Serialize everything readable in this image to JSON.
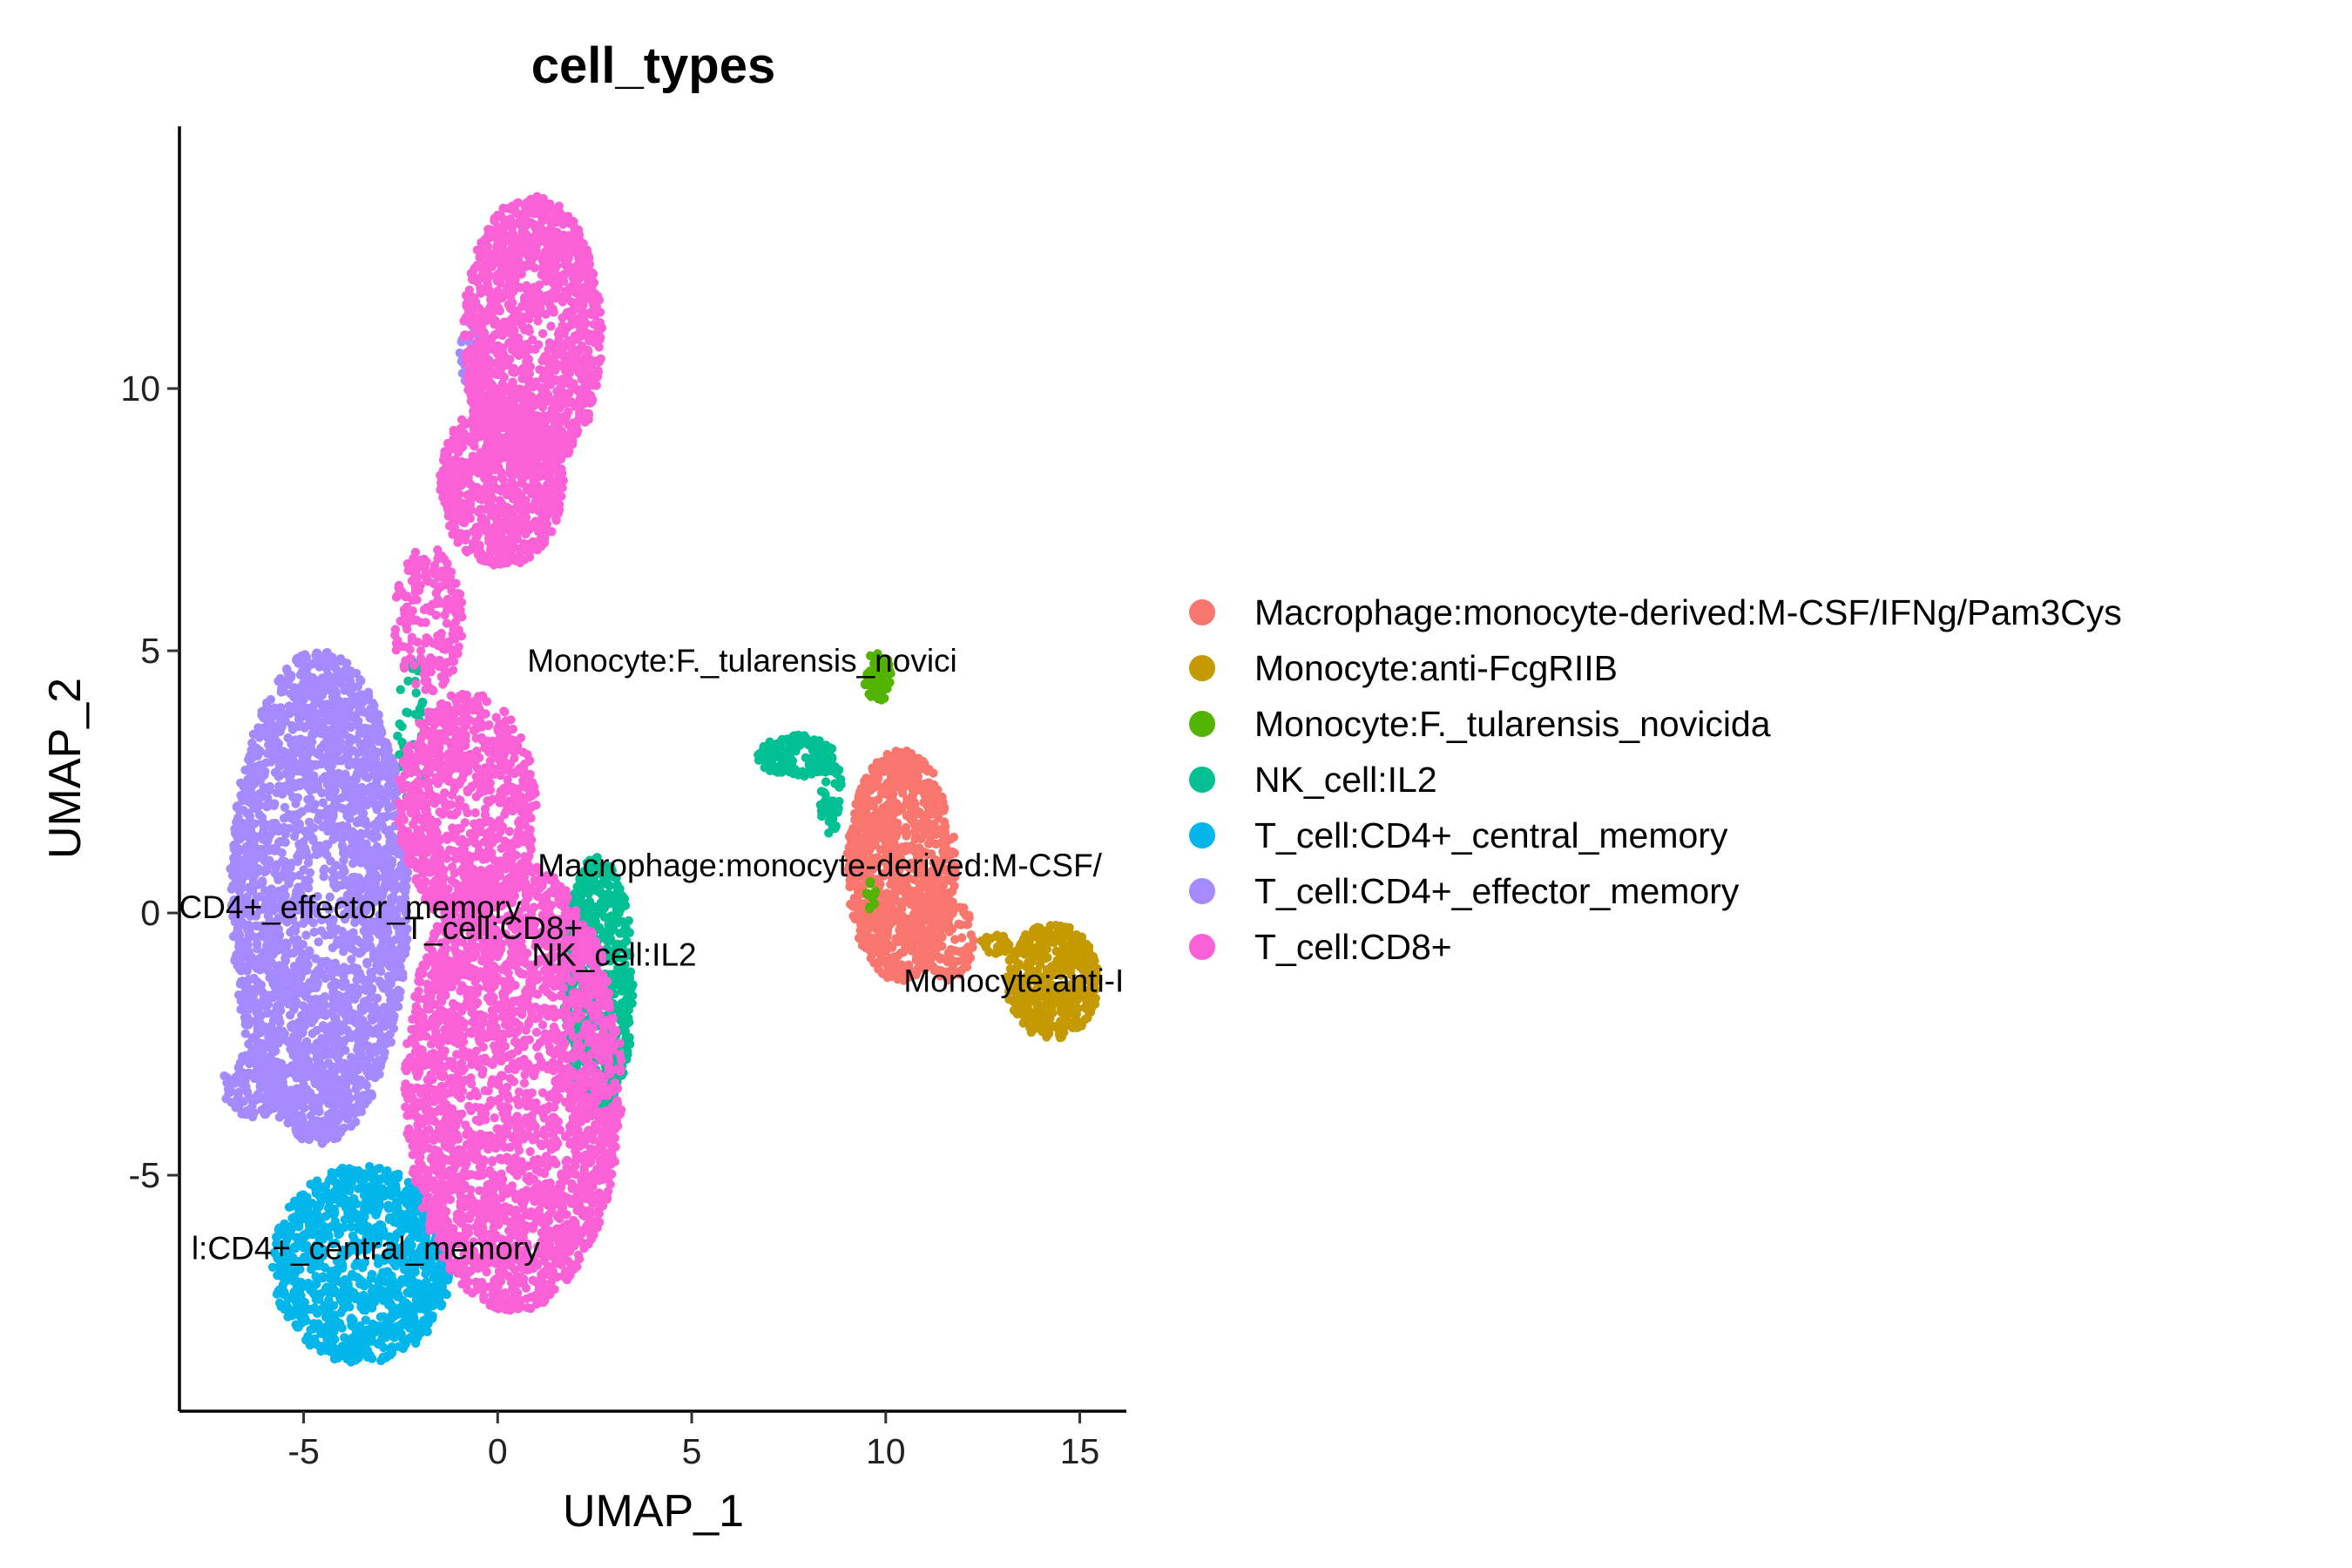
{
  "chart_data": {
    "type": "scatter",
    "title": "cell_types",
    "xlabel": "UMAP_1",
    "ylabel": "UMAP_2",
    "xlim": [
      -8.2,
      16.2
    ],
    "ylim": [
      -9.5,
      15
    ],
    "xticks": [
      -5,
      0,
      5,
      10,
      15
    ],
    "yticks": [
      -5,
      0,
      5,
      10
    ],
    "xtick_labels": [
      "-5",
      "0",
      "5",
      "10",
      "15"
    ],
    "ytick_labels": [
      "-5",
      "0",
      "5",
      "10"
    ],
    "legend_position": "right",
    "grid": false,
    "series": [
      {
        "name": "Macrophage:monocyte-derived:M-CSF/IFNg/Pam3Cys",
        "color": "#F8766D",
        "label_text": "Macrophage:monocyte-derived:M-CSF/",
        "label_at": [
          8.3,
          0.7
        ],
        "regions": [
          {
            "cx": 10.4,
            "cy": 0.9,
            "rx": 1.4,
            "ry": 2.2,
            "n": 900
          },
          {
            "cx": 11.5,
            "cy": -0.5,
            "rx": 0.8,
            "ry": 0.8,
            "n": 120
          }
        ]
      },
      {
        "name": "Monocyte:anti-FcgRIIB",
        "color": "#C49A00",
        "label_text": "Monocyte:anti-I",
        "label_at": [
          13.3,
          -1.5
        ],
        "regions": [
          {
            "cx": 14.3,
            "cy": -1.3,
            "rx": 1.2,
            "ry": 1.1,
            "n": 450
          },
          {
            "cx": 12.8,
            "cy": -0.6,
            "rx": 0.4,
            "ry": 0.2,
            "n": 20
          }
        ]
      },
      {
        "name": "Monocyte:F._tularensis_novicida",
        "color": "#53B400",
        "label_text": "Monocyte:F._tularensis_novici",
        "label_at": [
          6.3,
          4.6
        ],
        "regions": [
          {
            "cx": 9.8,
            "cy": 4.5,
            "rx": 0.35,
            "ry": 0.5,
            "n": 70
          },
          {
            "cx": 9.6,
            "cy": 0.3,
            "rx": 0.15,
            "ry": 0.3,
            "n": 12
          }
        ]
      },
      {
        "name": "NK_cell:IL2",
        "color": "#00C094",
        "label_text": "NK_cell:IL2",
        "label_at": [
          3.0,
          -1.0
        ],
        "regions": [
          {
            "cx": 2.6,
            "cy": -1.4,
            "rx": 0.9,
            "ry": 2.5,
            "n": 650
          },
          {
            "cx": 7.7,
            "cy": 3.0,
            "rx": 1.0,
            "ry": 0.4,
            "n": 140
          },
          {
            "cx": 8.6,
            "cy": 2.2,
            "rx": 0.3,
            "ry": 0.7,
            "n": 50
          },
          {
            "cx": -2.2,
            "cy": 3.5,
            "rx": 0.4,
            "ry": 1.5,
            "n": 40
          }
        ]
      },
      {
        "name": "T_cell:CD4+_central_memory",
        "color": "#00B6EB",
        "label_text": "l:CD4+_central_memory",
        "label_at": [
          -3.4,
          -6.6
        ],
        "regions": [
          {
            "cx": -3.5,
            "cy": -6.7,
            "rx": 2.3,
            "ry": 1.9,
            "n": 1100
          }
        ]
      },
      {
        "name": "T_cell:CD4+_effector_memory",
        "color": "#A58AFF",
        "label_text": "CD4+_effector_memory",
        "label_at": [
          -3.8,
          -0.1
        ],
        "regions": [
          {
            "cx": -4.6,
            "cy": 0.3,
            "rx": 2.3,
            "ry": 4.7,
            "n": 2600
          },
          {
            "cx": -6.3,
            "cy": -3.3,
            "rx": 0.8,
            "ry": 0.6,
            "n": 120
          },
          {
            "cx": -0.6,
            "cy": 10.6,
            "rx": 0.4,
            "ry": 0.7,
            "n": 40
          }
        ]
      },
      {
        "name": "T_cell:CD8+",
        "color": "#FB61D7",
        "label_text": "T_cell:CD8+",
        "label_at": [
          -0.1,
          -0.5
        ],
        "regions": [
          {
            "cx": 0.9,
            "cy": 11.0,
            "rx": 1.8,
            "ry": 2.7,
            "n": 1300
          },
          {
            "cx": 0.1,
            "cy": 8.2,
            "rx": 1.6,
            "ry": 1.6,
            "n": 800
          },
          {
            "cx": -1.8,
            "cy": 5.6,
            "rx": 0.9,
            "ry": 1.4,
            "n": 200
          },
          {
            "cx": -0.8,
            "cy": 2.0,
            "rx": 1.8,
            "ry": 2.2,
            "n": 900
          },
          {
            "cx": 0.4,
            "cy": -3.3,
            "rx": 2.8,
            "ry": 4.3,
            "n": 2700
          }
        ]
      }
    ]
  }
}
